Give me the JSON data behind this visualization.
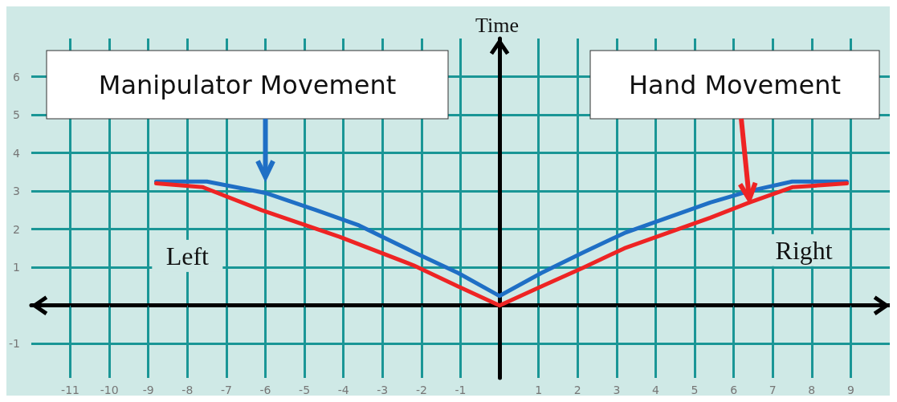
{
  "chart_data": {
    "type": "line",
    "ylabel": "Time",
    "xlim": [
      -12,
      10
    ],
    "ylim": [
      -1.9,
      7
    ],
    "xticks": [
      -11,
      -10,
      -9,
      -8,
      -7,
      -6,
      -5,
      -4,
      -3,
      -2,
      -1,
      1,
      2,
      3,
      4,
      5,
      6,
      7,
      8,
      9
    ],
    "yticks": [
      -1,
      1,
      2,
      3,
      4,
      5,
      6
    ],
    "grid": true,
    "legend": false,
    "marker": "none",
    "line_style": "solid",
    "annotations": [
      "Left",
      "Right"
    ],
    "series": [
      {
        "name": "Manipulator Movement",
        "color": "#1f6fc5",
        "x": [
          -8.8,
          -7.5,
          -6.0,
          -4.7,
          -3.6,
          -2.2,
          -1.06,
          0,
          1.07,
          2.16,
          3.2,
          4.3,
          5.4,
          6.4,
          7.5,
          8.9
        ],
        "values": [
          3.25,
          3.25,
          2.95,
          2.5,
          2.1,
          1.4,
          0.85,
          0.25,
          0.85,
          1.4,
          1.9,
          2.3,
          2.7,
          3.0,
          3.25,
          3.25
        ]
      },
      {
        "name": "Hand Movement",
        "color": "#ee2424",
        "x": [
          -8.8,
          -7.6,
          -6.1,
          -4.1,
          -2.2,
          -1.06,
          0,
          1.07,
          2.16,
          3.2,
          4.3,
          5.4,
          6.4,
          7.5,
          8.9
        ],
        "values": [
          3.2,
          3.1,
          2.5,
          1.8,
          1.05,
          0.5,
          0,
          0.5,
          1.0,
          1.5,
          1.9,
          2.3,
          2.7,
          3.1,
          3.2
        ]
      }
    ]
  }
}
